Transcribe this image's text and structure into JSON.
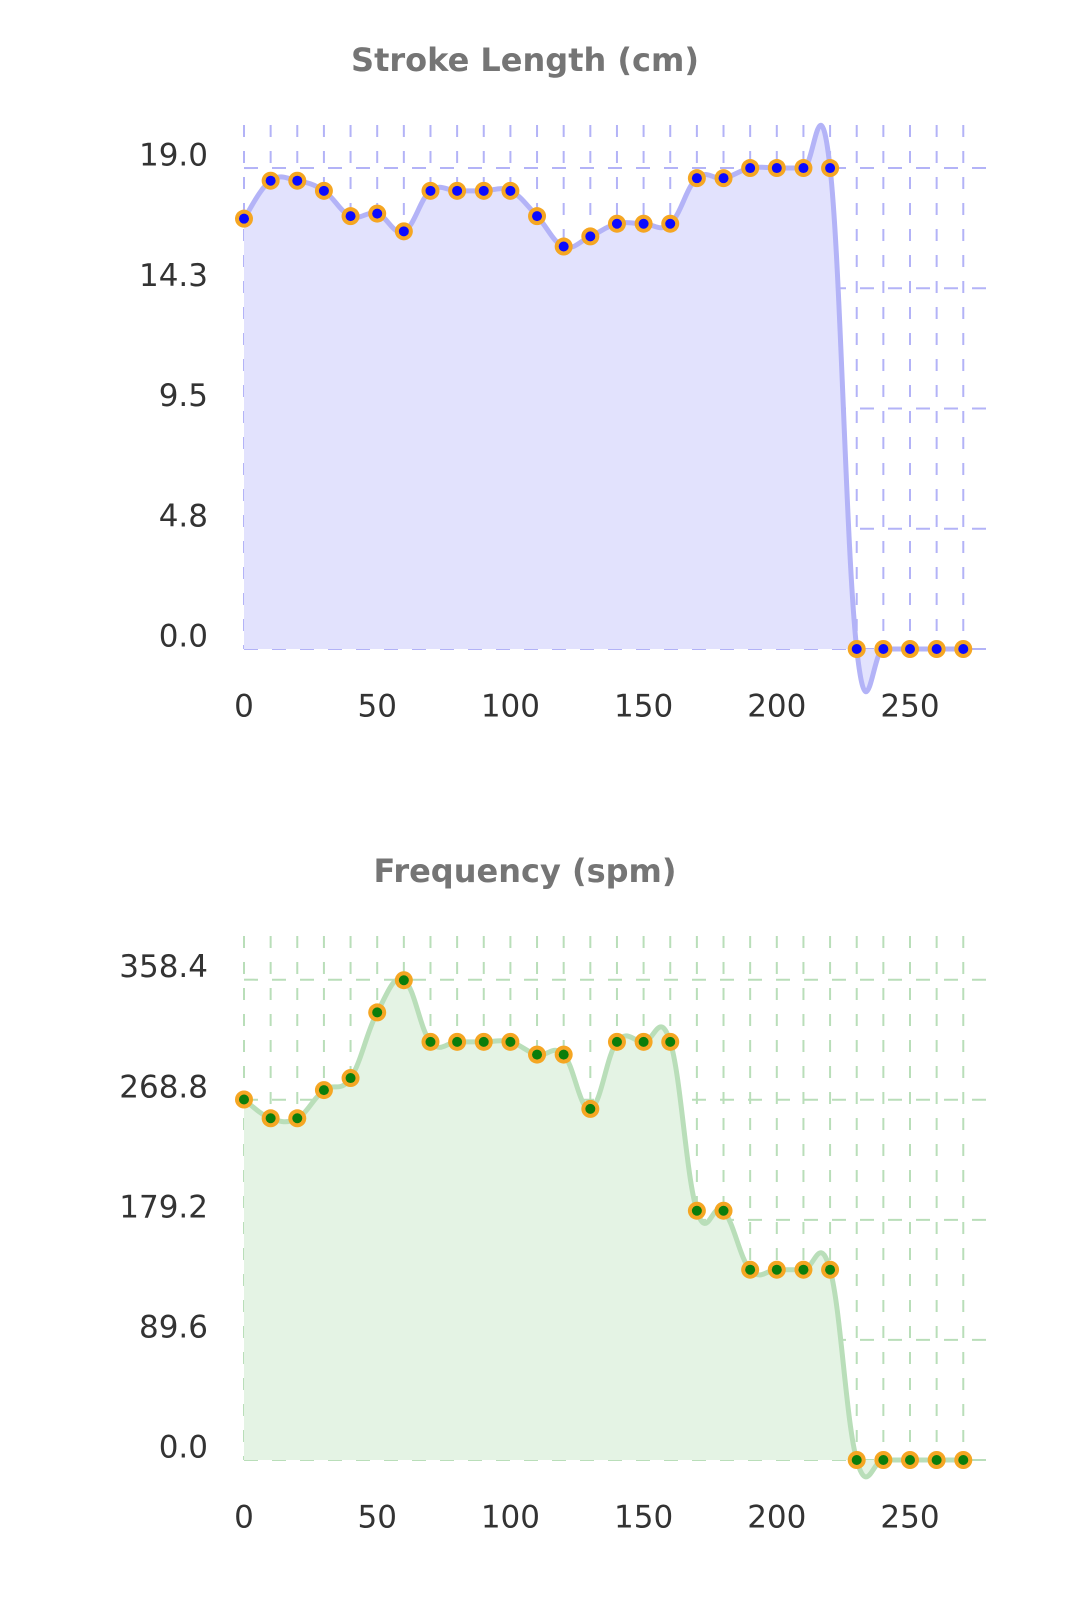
{
  "chart_data": [
    {
      "type": "line",
      "title": "Stroke Length (cm)",
      "x": [
        0,
        10,
        20,
        30,
        40,
        50,
        60,
        70,
        80,
        90,
        100,
        110,
        120,
        130,
        140,
        150,
        160,
        170,
        180,
        190,
        200,
        210,
        220,
        230,
        240,
        250,
        260,
        270
      ],
      "series": [
        {
          "color": "#b3b3f7",
          "fill": "#e2e2fd",
          "point_color": "#0a0aff",
          "values": [
            17.0,
            18.5,
            18.5,
            18.1,
            17.1,
            17.2,
            16.5,
            18.1,
            18.1,
            18.1,
            18.1,
            17.1,
            15.9,
            16.3,
            16.8,
            16.8,
            16.8,
            18.6,
            18.6,
            19.0,
            19.0,
            19.0,
            19.0,
            0,
            0,
            0,
            0,
            0
          ]
        }
      ],
      "xlim": [
        0,
        280
      ],
      "xticks": [
        0,
        50,
        100,
        150,
        200,
        250
      ],
      "ylim": [
        0,
        20.7
      ],
      "yticks": [
        {
          "value": 0,
          "label": "0.0"
        },
        {
          "value": 4.75,
          "label": "4.8"
        },
        {
          "value": 9.5,
          "label": "9.5"
        },
        {
          "value": 14.25,
          "label": "14.3"
        },
        {
          "value": 19,
          "label": "19.0"
        }
      ],
      "grid": true,
      "marker_edge_color": "#f5a623"
    },
    {
      "type": "line",
      "title": "Frequency (spm)",
      "x": [
        0,
        10,
        20,
        30,
        40,
        50,
        60,
        70,
        80,
        90,
        100,
        110,
        120,
        130,
        140,
        150,
        160,
        170,
        180,
        190,
        200,
        210,
        220,
        230,
        240,
        250,
        260,
        270
      ],
      "series": [
        {
          "color": "#b9deb9",
          "fill": "#e4f3e4",
          "point_color": "#0b7d0b",
          "values": [
            269,
            255,
            255,
            276,
            285,
            334,
            358,
            312,
            312,
            312,
            312,
            302.5,
            302.5,
            262,
            312,
            312,
            312,
            186,
            186,
            142,
            142,
            142,
            142,
            0,
            0,
            0,
            0,
            0
          ]
        }
      ],
      "xlim": [
        0,
        280
      ],
      "xticks": [
        0,
        50,
        100,
        150,
        200,
        250
      ],
      "ylim": [
        0,
        391
      ],
      "yticks": [
        {
          "value": 0,
          "label": "0.0"
        },
        89.6,
        179.2,
        268.8,
        358.4
      ],
      "grid": true,
      "marker_edge_color": "#f5a623"
    }
  ]
}
